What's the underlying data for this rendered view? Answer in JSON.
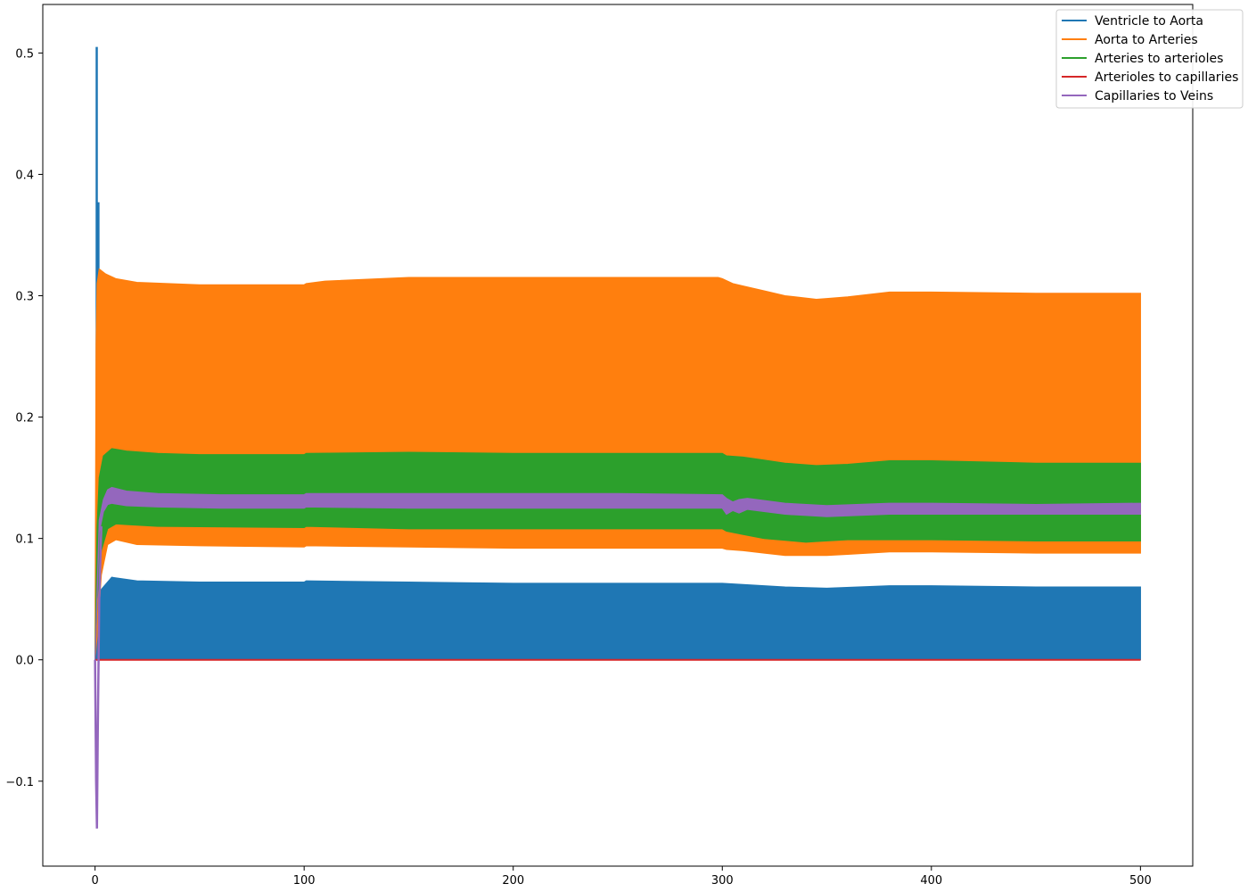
{
  "chart_data": {
    "type": "line",
    "title": "",
    "xlabel": "",
    "ylabel": "",
    "xlim": [
      -25,
      525
    ],
    "ylim": [
      -0.17,
      0.54
    ],
    "x_ticks": [
      0,
      100,
      200,
      300,
      400,
      500
    ],
    "x_tick_labels": [
      "0",
      "100",
      "200",
      "300",
      "400",
      "500"
    ],
    "y_ticks": [
      -0.1,
      0.0,
      0.1,
      0.2,
      0.3,
      0.4,
      0.5
    ],
    "y_tick_labels": [
      "−0.1",
      "0.0",
      "0.1",
      "0.2",
      "0.3",
      "0.4",
      "0.5"
    ],
    "grid": false,
    "legend_position": "top-right",
    "series": [
      {
        "name": "Ventricle to Aorta",
        "color": "#1f77b4",
        "render": "oscillating-band",
        "upper": {
          "x": [
            0,
            1,
            3,
            8,
            20,
            50,
            100,
            101,
            150,
            200,
            300,
            310,
            330,
            350,
            380,
            400,
            450,
            500
          ],
          "y": [
            0.0,
            0.04,
            0.058,
            0.068,
            0.065,
            0.064,
            0.064,
            0.065,
            0.064,
            0.063,
            0.063,
            0.062,
            0.06,
            0.059,
            0.061,
            0.061,
            0.06,
            0.06
          ]
        },
        "lower": {
          "x": [
            0,
            500
          ],
          "y": [
            0.0,
            0.0
          ]
        },
        "spikes": [
          {
            "x": 0.8,
            "y": 0.505
          },
          {
            "x": 1.6,
            "y": 0.377
          }
        ]
      },
      {
        "name": "Aorta to Arteries",
        "color": "#ff7f0e",
        "render": "oscillating-band",
        "upper": {
          "x": [
            0,
            0.5,
            1,
            2,
            5,
            10,
            20,
            50,
            100,
            101,
            110,
            150,
            200,
            250,
            298,
            300,
            305,
            310,
            320,
            330,
            345,
            360,
            380,
            400,
            450,
            500
          ],
          "y": [
            0.0,
            0.26,
            0.31,
            0.322,
            0.318,
            0.314,
            0.311,
            0.309,
            0.309,
            0.31,
            0.312,
            0.315,
            0.315,
            0.315,
            0.315,
            0.314,
            0.31,
            0.308,
            0.304,
            0.3,
            0.297,
            0.299,
            0.303,
            0.303,
            0.302,
            0.302
          ]
        },
        "lower": {
          "x": [
            0,
            1,
            3,
            6,
            10,
            20,
            50,
            100,
            101,
            150,
            200,
            300,
            302,
            310,
            330,
            350,
            380,
            400,
            450,
            500
          ],
          "y": [
            0.0,
            0.02,
            0.07,
            0.095,
            0.099,
            0.095,
            0.094,
            0.093,
            0.094,
            0.093,
            0.092,
            0.092,
            0.091,
            0.09,
            0.086,
            0.086,
            0.089,
            0.089,
            0.088,
            0.088
          ]
        }
      },
      {
        "name": "Arteries to arterioles",
        "color": "#2ca02c",
        "render": "oscillating-band",
        "upper": {
          "x": [
            0,
            1,
            2,
            4,
            8,
            15,
            30,
            50,
            100,
            101,
            150,
            200,
            300,
            302,
            310,
            330,
            345,
            360,
            380,
            400,
            450,
            500
          ],
          "y": [
            0.0,
            0.11,
            0.15,
            0.168,
            0.174,
            0.172,
            0.17,
            0.169,
            0.169,
            0.17,
            0.171,
            0.17,
            0.17,
            0.168,
            0.167,
            0.162,
            0.16,
            0.161,
            0.164,
            0.164,
            0.162,
            0.162
          ]
        },
        "lower": {
          "x": [
            0,
            1,
            3,
            6,
            10,
            30,
            100,
            101,
            150,
            200,
            300,
            302,
            320,
            340,
            360,
            400,
            450,
            500
          ],
          "y": [
            0.0,
            0.05,
            0.09,
            0.108,
            0.112,
            0.11,
            0.109,
            0.11,
            0.108,
            0.108,
            0.108,
            0.106,
            0.1,
            0.097,
            0.099,
            0.099,
            0.098,
            0.098
          ]
        }
      },
      {
        "name": "Arterioles to capillaries",
        "color": "#d62728",
        "render": "line",
        "x": [
          0,
          500
        ],
        "y": [
          0.0,
          0.0
        ]
      },
      {
        "name": "Capillaries to Veins",
        "color": "#9467bd",
        "render": "oscillating-band",
        "upper": {
          "x": [
            0,
            2,
            4,
            6,
            8,
            15,
            30,
            60,
            100,
            101,
            150,
            200,
            250,
            300,
            302,
            305,
            308,
            312,
            330,
            350,
            380,
            400,
            450,
            500
          ],
          "y": [
            0.0,
            0.115,
            0.132,
            0.14,
            0.142,
            0.139,
            0.137,
            0.136,
            0.136,
            0.137,
            0.137,
            0.137,
            0.137,
            0.136,
            0.133,
            0.13,
            0.132,
            0.133,
            0.129,
            0.127,
            0.129,
            0.129,
            0.128,
            0.129
          ]
        },
        "lower": {
          "x": [
            0,
            2,
            4,
            6,
            8,
            15,
            30,
            60,
            100,
            101,
            150,
            200,
            250,
            300,
            302,
            305,
            308,
            312,
            330,
            350,
            380,
            400,
            450,
            500
          ],
          "y": [
            0.0,
            0.105,
            0.122,
            0.128,
            0.129,
            0.127,
            0.126,
            0.125,
            0.125,
            0.126,
            0.125,
            0.125,
            0.125,
            0.125,
            0.12,
            0.123,
            0.121,
            0.124,
            0.12,
            0.118,
            0.12,
            0.12,
            0.12,
            0.12
          ]
        },
        "dip": {
          "x": [
            0,
            0.5,
            0.9,
            1.3,
            2,
            3
          ],
          "y": [
            0.0,
            -0.1,
            -0.139,
            -0.06,
            0.05,
            0.11
          ]
        }
      }
    ]
  }
}
